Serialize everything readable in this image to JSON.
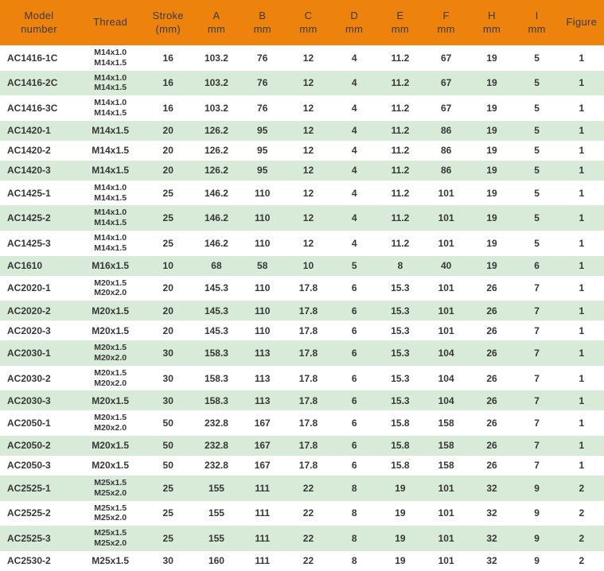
{
  "colors": {
    "header_bg": "#ED830D",
    "alt_row_bg": "#D8EAD8",
    "row_bg": "#FFFFFF",
    "header_text": "#3B3B3B",
    "body_text": "#373737"
  },
  "table": {
    "header": [
      {
        "id": "model",
        "lines": [
          "Model",
          "number"
        ]
      },
      {
        "id": "thread",
        "lines": [
          "Thread"
        ]
      },
      {
        "id": "stroke",
        "lines": [
          "Stroke",
          "(mm)"
        ]
      },
      {
        "id": "a",
        "lines": [
          "A",
          "mm"
        ]
      },
      {
        "id": "b",
        "lines": [
          "B",
          "mm"
        ]
      },
      {
        "id": "c",
        "lines": [
          "C",
          "mm"
        ]
      },
      {
        "id": "d",
        "lines": [
          "D",
          "mm"
        ]
      },
      {
        "id": "e",
        "lines": [
          "E",
          "mm"
        ]
      },
      {
        "id": "f",
        "lines": [
          "F",
          "mm"
        ]
      },
      {
        "id": "h",
        "lines": [
          "H",
          "mm"
        ]
      },
      {
        "id": "i",
        "lines": [
          "I",
          "mm"
        ]
      },
      {
        "id": "figure",
        "lines": [
          "Figure"
        ]
      }
    ],
    "rows": [
      {
        "model": "AC1416-1C",
        "thread": [
          "M14x1.0",
          "M14x1.5"
        ],
        "stroke": "16",
        "a": "103.2",
        "b": "76",
        "c": "12",
        "d": "4",
        "e": "11.2",
        "f": "67",
        "h": "19",
        "i": "5",
        "figure": "1"
      },
      {
        "model": "AC1416-2C",
        "thread": [
          "M14x1.0",
          "M14x1.5"
        ],
        "stroke": "16",
        "a": "103.2",
        "b": "76",
        "c": "12",
        "d": "4",
        "e": "11.2",
        "f": "67",
        "h": "19",
        "i": "5",
        "figure": "1"
      },
      {
        "model": "AC1416-3C",
        "thread": [
          "M14x1.0",
          "M14x1.5"
        ],
        "stroke": "16",
        "a": "103.2",
        "b": "76",
        "c": "12",
        "d": "4",
        "e": "11.2",
        "f": "67",
        "h": "19",
        "i": "5",
        "figure": "1"
      },
      {
        "model": "AC1420-1",
        "thread": "M14x1.5",
        "stroke": "20",
        "a": "126.2",
        "b": "95",
        "c": "12",
        "d": "4",
        "e": "11.2",
        "f": "86",
        "h": "19",
        "i": "5",
        "figure": "1"
      },
      {
        "model": "AC1420-2",
        "thread": "M14x1.5",
        "stroke": "20",
        "a": "126.2",
        "b": "95",
        "c": "12",
        "d": "4",
        "e": "11.2",
        "f": "86",
        "h": "19",
        "i": "5",
        "figure": "1"
      },
      {
        "model": "AC1420-3",
        "thread": "M14x1.5",
        "stroke": "20",
        "a": "126.2",
        "b": "95",
        "c": "12",
        "d": "4",
        "e": "11.2",
        "f": "86",
        "h": "19",
        "i": "5",
        "figure": "1"
      },
      {
        "model": "AC1425-1",
        "thread": [
          "M14x1.0",
          "M14x1.5"
        ],
        "stroke": "25",
        "a": "146.2",
        "b": "110",
        "c": "12",
        "d": "4",
        "e": "11.2",
        "f": "101",
        "h": "19",
        "i": "5",
        "figure": "1"
      },
      {
        "model": "AC1425-2",
        "thread": [
          "M14x1.0",
          "M14x1.5"
        ],
        "stroke": "25",
        "a": "146.2",
        "b": "110",
        "c": "12",
        "d": "4",
        "e": "11.2",
        "f": "101",
        "h": "19",
        "i": "5",
        "figure": "1"
      },
      {
        "model": "AC1425-3",
        "thread": [
          "M14x1.0",
          "M14x1.5"
        ],
        "stroke": "25",
        "a": "146.2",
        "b": "110",
        "c": "12",
        "d": "4",
        "e": "11.2",
        "f": "101",
        "h": "19",
        "i": "5",
        "figure": "1"
      },
      {
        "model": "AC1610",
        "thread": "M16x1.5",
        "stroke": "10",
        "a": "68",
        "b": "58",
        "c": "10",
        "d": "5",
        "e": "8",
        "f": "40",
        "h": "19",
        "i": "6",
        "figure": "1"
      },
      {
        "model": "AC2020-1",
        "thread": [
          "M20x1.5",
          "M20x2.0"
        ],
        "stroke": "20",
        "a": "145.3",
        "b": "110",
        "c": "17.8",
        "d": "6",
        "e": "15.3",
        "f": "101",
        "h": "26",
        "i": "7",
        "figure": "1"
      },
      {
        "model": "AC2020-2",
        "thread": "M20x1.5",
        "stroke": "20",
        "a": "145.3",
        "b": "110",
        "c": "17.8",
        "d": "6",
        "e": "15.3",
        "f": "101",
        "h": "26",
        "i": "7",
        "figure": "1"
      },
      {
        "model": "AC2020-3",
        "thread": "M20x1.5",
        "stroke": "20",
        "a": "145.3",
        "b": "110",
        "c": "17.8",
        "d": "6",
        "e": "15.3",
        "f": "101",
        "h": "26",
        "i": "7",
        "figure": "1"
      },
      {
        "model": "AC2030-1",
        "thread": [
          "M20x1.5",
          "M20x2.0"
        ],
        "stroke": "30",
        "a": "158.3",
        "b": "113",
        "c": "17.8",
        "d": "6",
        "e": "15.3",
        "f": "104",
        "h": "26",
        "i": "7",
        "figure": "1"
      },
      {
        "model": "AC2030-2",
        "thread": [
          "M20x1.5",
          "M20x2.0"
        ],
        "stroke": "30",
        "a": "158.3",
        "b": "113",
        "c": "17.8",
        "d": "6",
        "e": "15.3",
        "f": "104",
        "h": "26",
        "i": "7",
        "figure": "1"
      },
      {
        "model": "AC2030-3",
        "thread": "M20x1.5",
        "stroke": "30",
        "a": "158.3",
        "b": "113",
        "c": "17.8",
        "d": "6",
        "e": "15.3",
        "f": "104",
        "h": "26",
        "i": "7",
        "figure": "1"
      },
      {
        "model": "AC2050-1",
        "thread": [
          "M20x1.5",
          "M20x2.0"
        ],
        "stroke": "50",
        "a": "232.8",
        "b": "167",
        "c": "17.8",
        "d": "6",
        "e": "15.8",
        "f": "158",
        "h": "26",
        "i": "7",
        "figure": "1"
      },
      {
        "model": "AC2050-2",
        "thread": "M20x1.5",
        "stroke": "50",
        "a": "232.8",
        "b": "167",
        "c": "17.8",
        "d": "6",
        "e": "15.8",
        "f": "158",
        "h": "26",
        "i": "7",
        "figure": "1"
      },
      {
        "model": "AC2050-3",
        "thread": "M20x1.5",
        "stroke": "50",
        "a": "232.8",
        "b": "167",
        "c": "17.8",
        "d": "6",
        "e": "15.8",
        "f": "158",
        "h": "26",
        "i": "7",
        "figure": "1"
      },
      {
        "model": "AC2525-1",
        "thread": [
          "M25x1.5",
          "M25x2.0"
        ],
        "stroke": "25",
        "a": "155",
        "b": "111",
        "c": "22",
        "d": "8",
        "e": "19",
        "f": "101",
        "h": "32",
        "i": "9",
        "figure": "2"
      },
      {
        "model": "AC2525-2",
        "thread": [
          "M25x1.5",
          "M25x2.0"
        ],
        "stroke": "25",
        "a": "155",
        "b": "111",
        "c": "22",
        "d": "8",
        "e": "19",
        "f": "101",
        "h": "32",
        "i": "9",
        "figure": "2"
      },
      {
        "model": "AC2525-3",
        "thread": [
          "M25x1.5",
          "M25x2.0"
        ],
        "stroke": "25",
        "a": "155",
        "b": "111",
        "c": "22",
        "d": "8",
        "e": "19",
        "f": "101",
        "h": "32",
        "i": "9",
        "figure": "2"
      },
      {
        "model": "AC2530-2",
        "thread": "M25x1.5",
        "stroke": "30",
        "a": "160",
        "b": "111",
        "c": "22",
        "d": "8",
        "e": "19",
        "f": "101",
        "h": "32",
        "i": "9",
        "figure": "2"
      }
    ]
  }
}
